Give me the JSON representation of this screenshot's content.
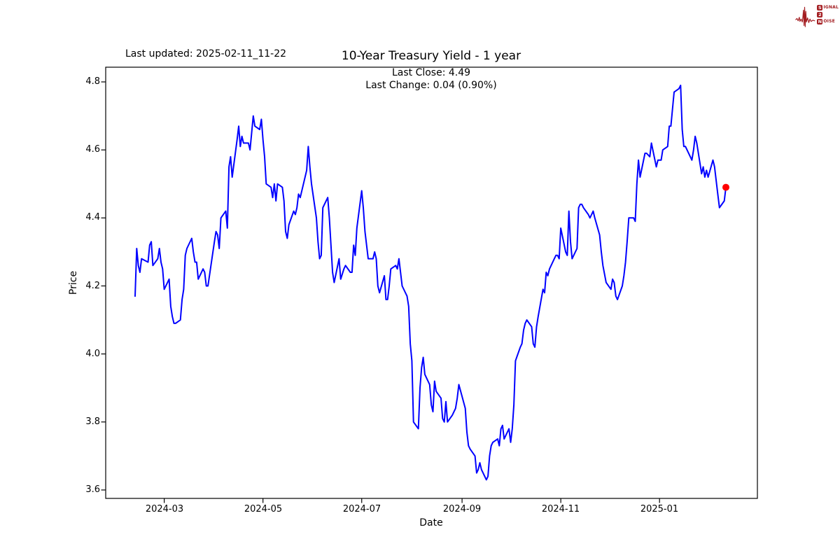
{
  "header": {
    "last_updated": "Last updated: 2025-02-11_11-22",
    "title": "10-Year Treasury Yield - 1 year",
    "subtitle_line1": "Last Close: 4.49",
    "subtitle_line2": "Last Change: 0.04 (0.90%)"
  },
  "logo": {
    "row1_initial": "S",
    "row1_rest": "IGNAL",
    "row2_initial": "2",
    "row2_rest": "",
    "row3_initial": "N",
    "row3_rest": "OISE",
    "color": "#a31d21"
  },
  "chart_data": {
    "type": "line",
    "title": "10-Year Treasury Yield - 1 year",
    "xlabel": "Date",
    "ylabel": "Price",
    "legend": "none",
    "grid": false,
    "line_color": "#0000ff",
    "marker_color": "#ff0000",
    "last_close": 4.49,
    "last_change": 0.04,
    "last_change_pct": "0.90%",
    "ylim": [
      3.575,
      4.845
    ],
    "ytick_labels": [
      "4.8",
      "4.6",
      "4.4",
      "4.2",
      "4.0",
      "3.8",
      "3.6"
    ],
    "xticks": [
      {
        "label": "2024-03",
        "date": "2024-03-01"
      },
      {
        "label": "2024-05",
        "date": "2024-05-01"
      },
      {
        "label": "2024-07",
        "date": "2024-07-01"
      },
      {
        "label": "2024-09",
        "date": "2024-09-01"
      },
      {
        "label": "2024-11",
        "date": "2024-11-01"
      },
      {
        "label": "2025-01",
        "date": "2025-01-01"
      }
    ],
    "series": [
      {
        "name": "10-Year Treasury Yield",
        "points": [
          [
            "2024-02-12",
            4.17
          ],
          [
            "2024-02-13",
            4.31
          ],
          [
            "2024-02-14",
            4.26
          ],
          [
            "2024-02-15",
            4.24
          ],
          [
            "2024-02-16",
            4.28
          ],
          [
            "2024-02-20",
            4.27
          ],
          [
            "2024-02-21",
            4.32
          ],
          [
            "2024-02-22",
            4.33
          ],
          [
            "2024-02-23",
            4.26
          ],
          [
            "2024-02-26",
            4.28
          ],
          [
            "2024-02-27",
            4.31
          ],
          [
            "2024-02-28",
            4.27
          ],
          [
            "2024-02-29",
            4.25
          ],
          [
            "2024-03-01",
            4.19
          ],
          [
            "2024-03-04",
            4.22
          ],
          [
            "2024-03-05",
            4.14
          ],
          [
            "2024-03-06",
            4.11
          ],
          [
            "2024-03-07",
            4.09
          ],
          [
            "2024-03-08",
            4.09
          ],
          [
            "2024-03-11",
            4.1
          ],
          [
            "2024-03-12",
            4.16
          ],
          [
            "2024-03-13",
            4.19
          ],
          [
            "2024-03-14",
            4.29
          ],
          [
            "2024-03-15",
            4.31
          ],
          [
            "2024-03-18",
            4.34
          ],
          [
            "2024-03-19",
            4.3
          ],
          [
            "2024-03-20",
            4.27
          ],
          [
            "2024-03-21",
            4.27
          ],
          [
            "2024-03-22",
            4.22
          ],
          [
            "2024-03-25",
            4.25
          ],
          [
            "2024-03-26",
            4.24
          ],
          [
            "2024-03-27",
            4.2
          ],
          [
            "2024-03-28",
            4.2
          ],
          [
            "2024-04-01",
            4.33
          ],
          [
            "2024-04-02",
            4.36
          ],
          [
            "2024-04-03",
            4.35
          ],
          [
            "2024-04-04",
            4.31
          ],
          [
            "2024-04-05",
            4.4
          ],
          [
            "2024-04-08",
            4.42
          ],
          [
            "2024-04-09",
            4.37
          ],
          [
            "2024-04-10",
            4.55
          ],
          [
            "2024-04-11",
            4.58
          ],
          [
            "2024-04-12",
            4.52
          ],
          [
            "2024-04-15",
            4.63
          ],
          [
            "2024-04-16",
            4.67
          ],
          [
            "2024-04-17",
            4.61
          ],
          [
            "2024-04-18",
            4.64
          ],
          [
            "2024-04-19",
            4.62
          ],
          [
            "2024-04-22",
            4.62
          ],
          [
            "2024-04-23",
            4.6
          ],
          [
            "2024-04-24",
            4.65
          ],
          [
            "2024-04-25",
            4.7
          ],
          [
            "2024-04-26",
            4.67
          ],
          [
            "2024-04-29",
            4.66
          ],
          [
            "2024-04-30",
            4.69
          ],
          [
            "2024-05-01",
            4.63
          ],
          [
            "2024-05-02",
            4.58
          ],
          [
            "2024-05-03",
            4.5
          ],
          [
            "2024-05-06",
            4.49
          ],
          [
            "2024-05-07",
            4.46
          ],
          [
            "2024-05-08",
            4.5
          ],
          [
            "2024-05-09",
            4.45
          ],
          [
            "2024-05-10",
            4.5
          ],
          [
            "2024-05-13",
            4.49
          ],
          [
            "2024-05-14",
            4.45
          ],
          [
            "2024-05-15",
            4.36
          ],
          [
            "2024-05-16",
            4.34
          ],
          [
            "2024-05-17",
            4.38
          ],
          [
            "2024-05-20",
            4.42
          ],
          [
            "2024-05-21",
            4.41
          ],
          [
            "2024-05-22",
            4.43
          ],
          [
            "2024-05-23",
            4.47
          ],
          [
            "2024-05-24",
            4.46
          ],
          [
            "2024-05-28",
            4.54
          ],
          [
            "2024-05-29",
            4.61
          ],
          [
            "2024-05-30",
            4.55
          ],
          [
            "2024-05-31",
            4.5
          ],
          [
            "2024-06-03",
            4.4
          ],
          [
            "2024-06-04",
            4.33
          ],
          [
            "2024-06-05",
            4.28
          ],
          [
            "2024-06-06",
            4.29
          ],
          [
            "2024-06-07",
            4.43
          ],
          [
            "2024-06-10",
            4.46
          ],
          [
            "2024-06-11",
            4.4
          ],
          [
            "2024-06-12",
            4.32
          ],
          [
            "2024-06-13",
            4.24
          ],
          [
            "2024-06-14",
            4.21
          ],
          [
            "2024-06-17",
            4.28
          ],
          [
            "2024-06-18",
            4.22
          ],
          [
            "2024-06-20",
            4.25
          ],
          [
            "2024-06-21",
            4.26
          ],
          [
            "2024-06-24",
            4.24
          ],
          [
            "2024-06-25",
            4.24
          ],
          [
            "2024-06-26",
            4.32
          ],
          [
            "2024-06-27",
            4.29
          ],
          [
            "2024-06-28",
            4.37
          ],
          [
            "2024-07-01",
            4.48
          ],
          [
            "2024-07-02",
            4.43
          ],
          [
            "2024-07-03",
            4.36
          ],
          [
            "2024-07-05",
            4.28
          ],
          [
            "2024-07-08",
            4.28
          ],
          [
            "2024-07-09",
            4.3
          ],
          [
            "2024-07-10",
            4.28
          ],
          [
            "2024-07-11",
            4.2
          ],
          [
            "2024-07-12",
            4.18
          ],
          [
            "2024-07-15",
            4.23
          ],
          [
            "2024-07-16",
            4.16
          ],
          [
            "2024-07-17",
            4.16
          ],
          [
            "2024-07-18",
            4.2
          ],
          [
            "2024-07-19",
            4.25
          ],
          [
            "2024-07-22",
            4.26
          ],
          [
            "2024-07-23",
            4.25
          ],
          [
            "2024-07-24",
            4.28
          ],
          [
            "2024-07-25",
            4.24
          ],
          [
            "2024-07-26",
            4.2
          ],
          [
            "2024-07-29",
            4.17
          ],
          [
            "2024-07-30",
            4.14
          ],
          [
            "2024-07-31",
            4.03
          ],
          [
            "2024-08-01",
            3.98
          ],
          [
            "2024-08-02",
            3.8
          ],
          [
            "2024-08-05",
            3.78
          ],
          [
            "2024-08-06",
            3.9
          ],
          [
            "2024-08-07",
            3.96
          ],
          [
            "2024-08-08",
            3.99
          ],
          [
            "2024-08-09",
            3.94
          ],
          [
            "2024-08-12",
            3.91
          ],
          [
            "2024-08-13",
            3.85
          ],
          [
            "2024-08-14",
            3.83
          ],
          [
            "2024-08-15",
            3.92
          ],
          [
            "2024-08-16",
            3.89
          ],
          [
            "2024-08-19",
            3.87
          ],
          [
            "2024-08-20",
            3.81
          ],
          [
            "2024-08-21",
            3.8
          ],
          [
            "2024-08-22",
            3.86
          ],
          [
            "2024-08-23",
            3.8
          ],
          [
            "2024-08-26",
            3.82
          ],
          [
            "2024-08-27",
            3.83
          ],
          [
            "2024-08-28",
            3.84
          ],
          [
            "2024-08-29",
            3.87
          ],
          [
            "2024-08-30",
            3.91
          ],
          [
            "2024-09-03",
            3.84
          ],
          [
            "2024-09-04",
            3.77
          ],
          [
            "2024-09-05",
            3.73
          ],
          [
            "2024-09-06",
            3.72
          ],
          [
            "2024-09-09",
            3.7
          ],
          [
            "2024-09-10",
            3.65
          ],
          [
            "2024-09-11",
            3.66
          ],
          [
            "2024-09-12",
            3.68
          ],
          [
            "2024-09-13",
            3.66
          ],
          [
            "2024-09-16",
            3.63
          ],
          [
            "2024-09-17",
            3.64
          ],
          [
            "2024-09-18",
            3.7
          ],
          [
            "2024-09-19",
            3.73
          ],
          [
            "2024-09-20",
            3.74
          ],
          [
            "2024-09-23",
            3.75
          ],
          [
            "2024-09-24",
            3.73
          ],
          [
            "2024-09-25",
            3.78
          ],
          [
            "2024-09-26",
            3.79
          ],
          [
            "2024-09-27",
            3.75
          ],
          [
            "2024-09-30",
            3.78
          ],
          [
            "2024-10-01",
            3.74
          ],
          [
            "2024-10-02",
            3.78
          ],
          [
            "2024-10-03",
            3.85
          ],
          [
            "2024-10-04",
            3.98
          ],
          [
            "2024-10-07",
            4.02
          ],
          [
            "2024-10-08",
            4.03
          ],
          [
            "2024-10-09",
            4.07
          ],
          [
            "2024-10-10",
            4.09
          ],
          [
            "2024-10-11",
            4.1
          ],
          [
            "2024-10-14",
            4.08
          ],
          [
            "2024-10-15",
            4.03
          ],
          [
            "2024-10-16",
            4.02
          ],
          [
            "2024-10-17",
            4.08
          ],
          [
            "2024-10-18",
            4.11
          ],
          [
            "2024-10-21",
            4.19
          ],
          [
            "2024-10-22",
            4.18
          ],
          [
            "2024-10-23",
            4.24
          ],
          [
            "2024-10-24",
            4.23
          ],
          [
            "2024-10-25",
            4.25
          ],
          [
            "2024-10-28",
            4.28
          ],
          [
            "2024-10-29",
            4.29
          ],
          [
            "2024-10-30",
            4.29
          ],
          [
            "2024-10-31",
            4.28
          ],
          [
            "2024-11-01",
            4.37
          ],
          [
            "2024-11-04",
            4.3
          ],
          [
            "2024-11-05",
            4.29
          ],
          [
            "2024-11-06",
            4.42
          ],
          [
            "2024-11-07",
            4.33
          ],
          [
            "2024-11-08",
            4.28
          ],
          [
            "2024-11-11",
            4.31
          ],
          [
            "2024-11-12",
            4.43
          ],
          [
            "2024-11-13",
            4.44
          ],
          [
            "2024-11-14",
            4.44
          ],
          [
            "2024-11-15",
            4.43
          ],
          [
            "2024-11-18",
            4.41
          ],
          [
            "2024-11-19",
            4.4
          ],
          [
            "2024-11-20",
            4.41
          ],
          [
            "2024-11-21",
            4.42
          ],
          [
            "2024-11-22",
            4.4
          ],
          [
            "2024-11-25",
            4.35
          ],
          [
            "2024-11-26",
            4.3
          ],
          [
            "2024-11-27",
            4.26
          ],
          [
            "2024-11-29",
            4.21
          ],
          [
            "2024-12-02",
            4.19
          ],
          [
            "2024-12-03",
            4.22
          ],
          [
            "2024-12-04",
            4.21
          ],
          [
            "2024-12-05",
            4.17
          ],
          [
            "2024-12-06",
            4.16
          ],
          [
            "2024-12-09",
            4.2
          ],
          [
            "2024-12-10",
            4.23
          ],
          [
            "2024-12-11",
            4.27
          ],
          [
            "2024-12-12",
            4.33
          ],
          [
            "2024-12-13",
            4.4
          ],
          [
            "2024-12-16",
            4.4
          ],
          [
            "2024-12-17",
            4.39
          ],
          [
            "2024-12-18",
            4.5
          ],
          [
            "2024-12-19",
            4.57
          ],
          [
            "2024-12-20",
            4.52
          ],
          [
            "2024-12-23",
            4.59
          ],
          [
            "2024-12-24",
            4.59
          ],
          [
            "2024-12-26",
            4.58
          ],
          [
            "2024-12-27",
            4.62
          ],
          [
            "2024-12-30",
            4.55
          ],
          [
            "2024-12-31",
            4.57
          ],
          [
            "2025-01-02",
            4.57
          ],
          [
            "2025-01-03",
            4.6
          ],
          [
            "2025-01-06",
            4.61
          ],
          [
            "2025-01-07",
            4.67
          ],
          [
            "2025-01-08",
            4.67
          ],
          [
            "2025-01-10",
            4.77
          ],
          [
            "2025-01-13",
            4.78
          ],
          [
            "2025-01-14",
            4.79
          ],
          [
            "2025-01-15",
            4.66
          ],
          [
            "2025-01-16",
            4.61
          ],
          [
            "2025-01-17",
            4.61
          ],
          [
            "2025-01-21",
            4.57
          ],
          [
            "2025-01-22",
            4.6
          ],
          [
            "2025-01-23",
            4.64
          ],
          [
            "2025-01-24",
            4.62
          ],
          [
            "2025-01-27",
            4.53
          ],
          [
            "2025-01-28",
            4.55
          ],
          [
            "2025-01-29",
            4.52
          ],
          [
            "2025-01-30",
            4.54
          ],
          [
            "2025-01-31",
            4.52
          ],
          [
            "2025-02-03",
            4.57
          ],
          [
            "2025-02-04",
            4.55
          ],
          [
            "2025-02-05",
            4.51
          ],
          [
            "2025-02-06",
            4.47
          ],
          [
            "2025-02-07",
            4.43
          ],
          [
            "2025-02-10",
            4.45
          ],
          [
            "2025-02-11",
            4.49
          ]
        ]
      }
    ]
  }
}
